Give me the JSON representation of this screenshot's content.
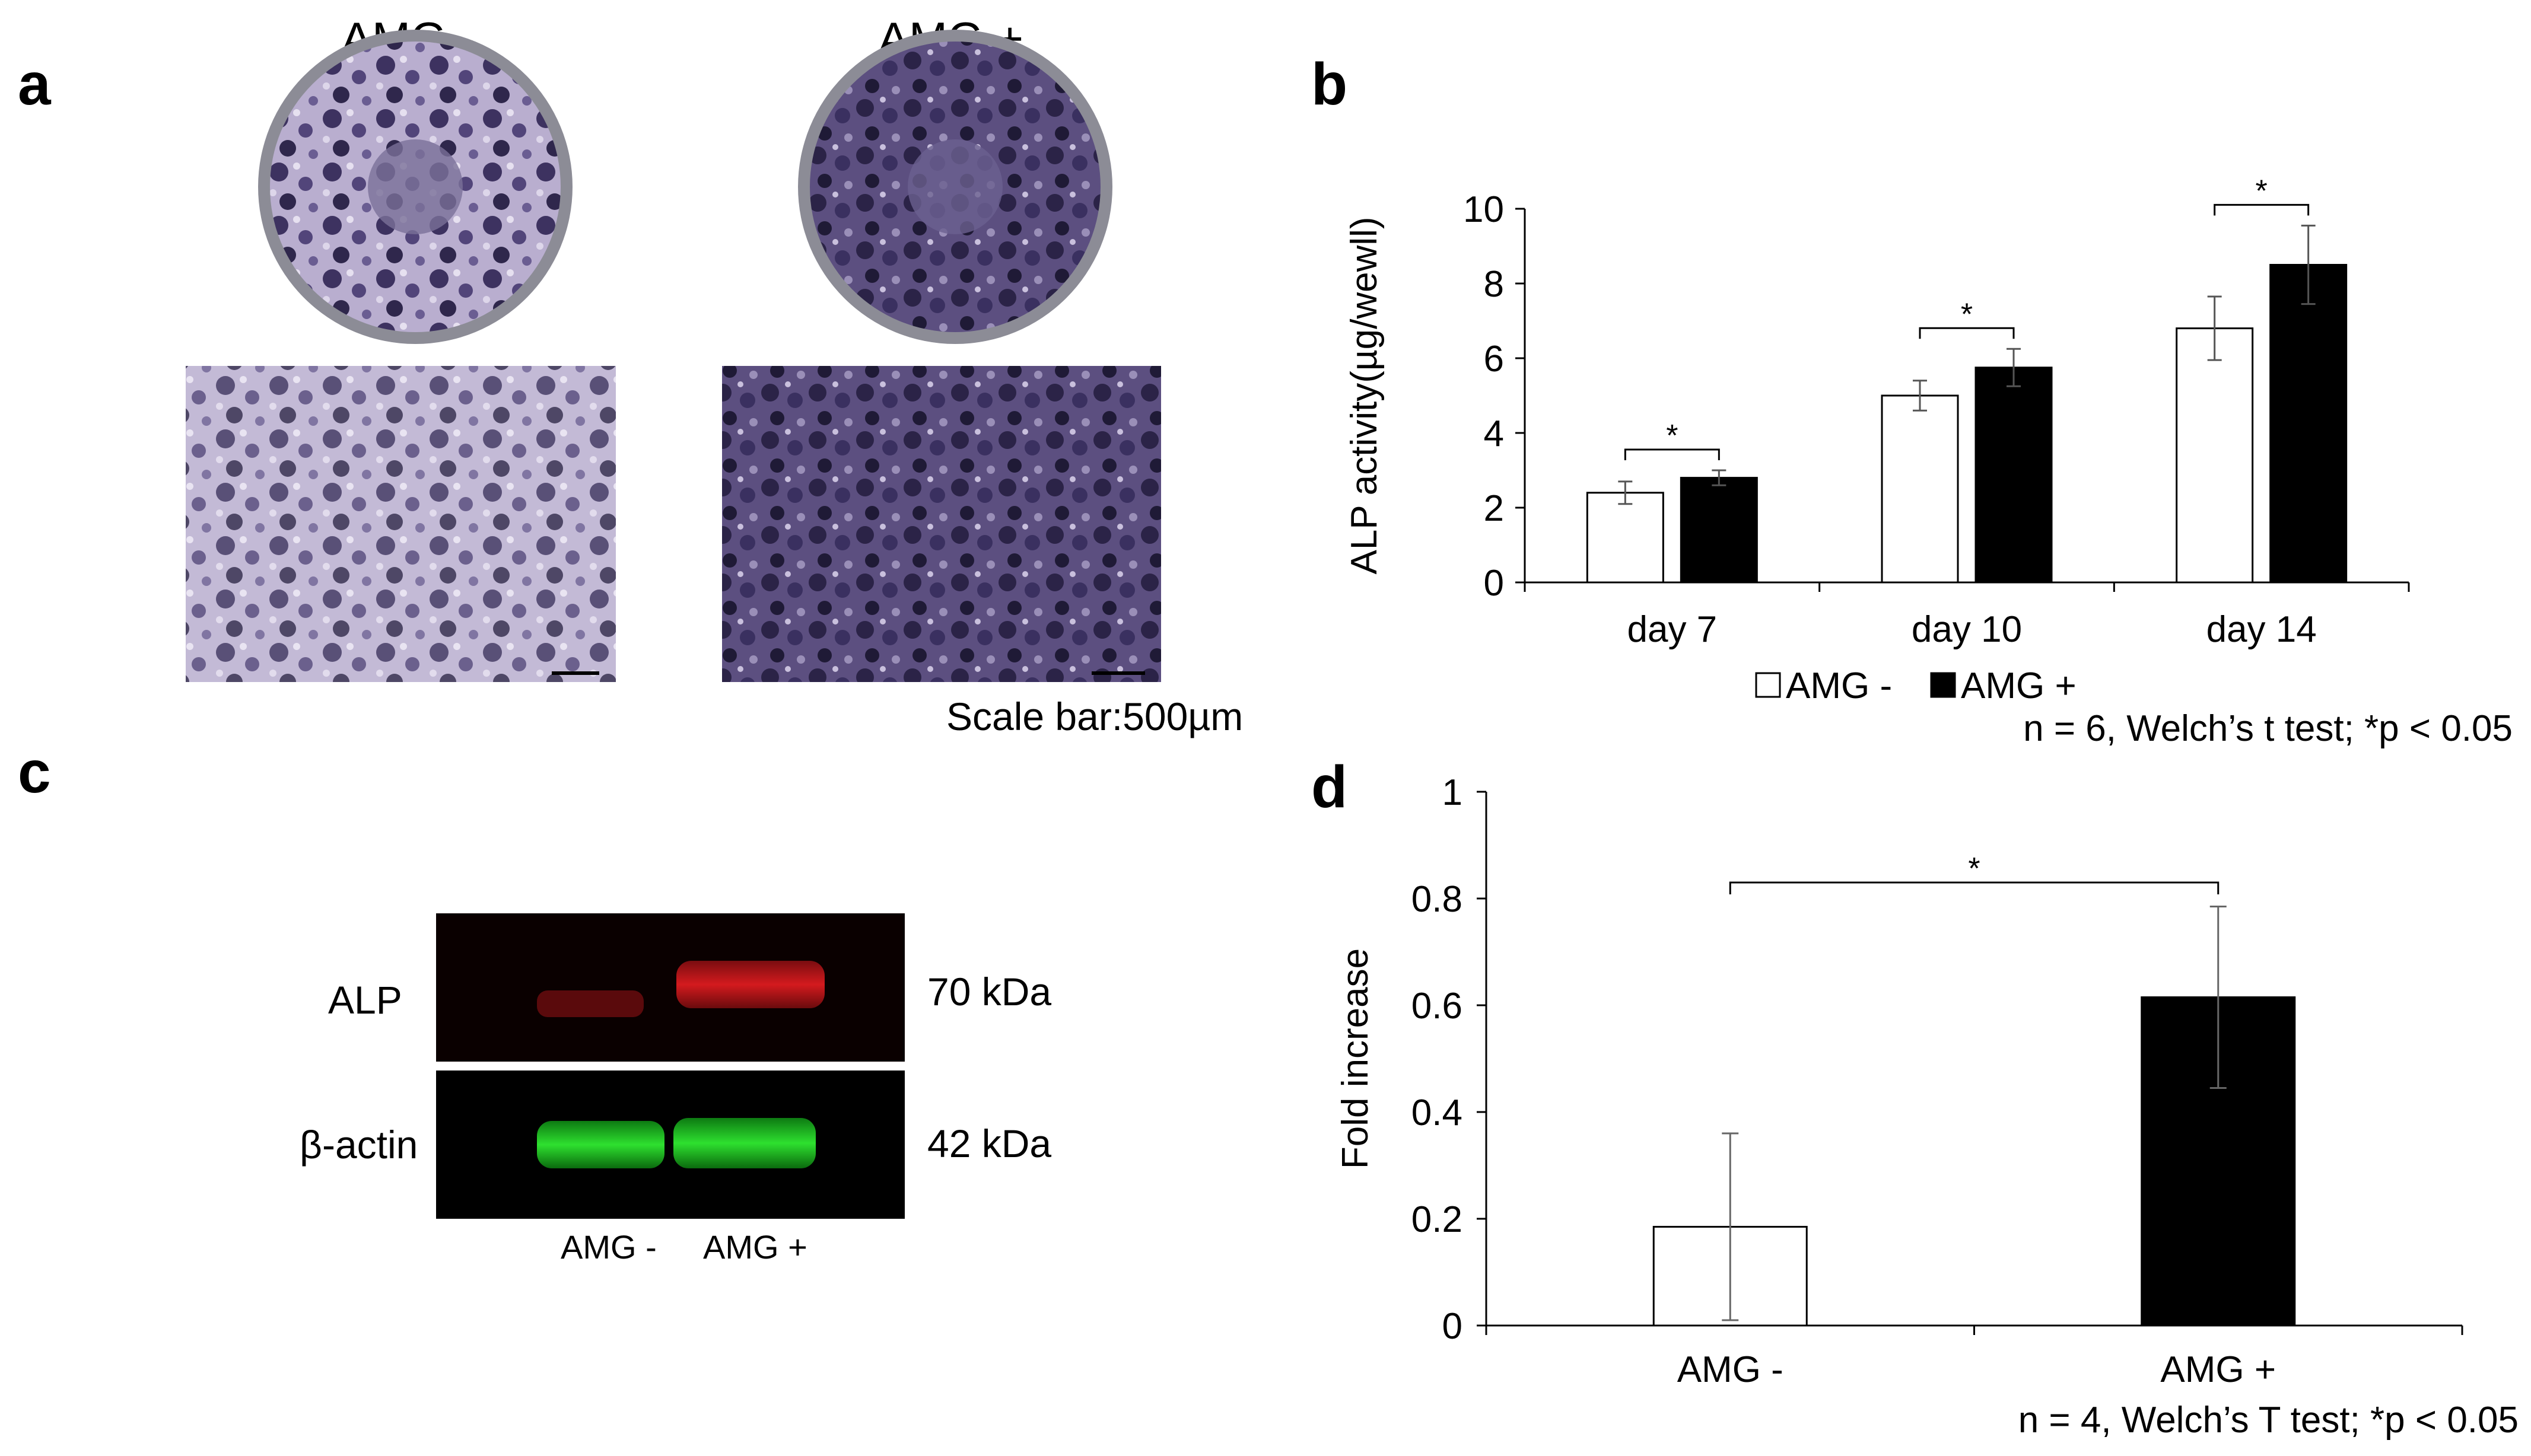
{
  "panel_a": {
    "letter": "a",
    "label_minus": "AMG -",
    "label_plus": "AMG +",
    "scale_bar": "Scale bar:500µm"
  },
  "panel_b": {
    "letter": "b"
  },
  "panel_c": {
    "letter": "c",
    "row1": "ALP",
    "row2": "β-actin",
    "kda1": "70 kDa",
    "kda2": "42 kDa",
    "lane1": "AMG -",
    "lane2": "AMG +"
  },
  "panel_d": {
    "letter": "d"
  },
  "colors": {
    "bar_minus": "#ffffff",
    "bar_plus": "#000000",
    "alp_band": "#c0181c",
    "actin_band": "#1fc21f",
    "stain": "#4a3d6e"
  },
  "chart_data": [
    {
      "type": "bar",
      "ylabel": "ALP activity(µg/wewll)",
      "ylim": [
        0,
        10
      ],
      "yticks": [
        "0",
        "2",
        "4",
        "6",
        "8",
        "10"
      ],
      "categories": [
        "day 7",
        "day 10",
        "day 14"
      ],
      "series": [
        {
          "name": "AMG -",
          "values": [
            2.4,
            5.0,
            6.8
          ],
          "errors": [
            0.3,
            0.4,
            0.85
          ]
        },
        {
          "name": "AMG +",
          "values": [
            2.8,
            5.75,
            8.5
          ],
          "errors": [
            0.2,
            0.5,
            1.05
          ]
        }
      ],
      "significance": [
        "*",
        "*",
        "*"
      ],
      "legend_position": "bottom",
      "note": "n = 6, Welch’s t test; *p < 0.05"
    },
    {
      "type": "bar",
      "ylabel": "Fold increase",
      "ylim": [
        0,
        1
      ],
      "yticks": [
        "0",
        "0.2",
        "0.4",
        "0.6",
        "0.8",
        "1"
      ],
      "categories": [
        "AMG -",
        "AMG +"
      ],
      "values": [
        0.185,
        0.615
      ],
      "errors": [
        0.175,
        0.17
      ],
      "significance": "*",
      "note": "n = 4, Welch’s T test; *p < 0.05"
    }
  ]
}
